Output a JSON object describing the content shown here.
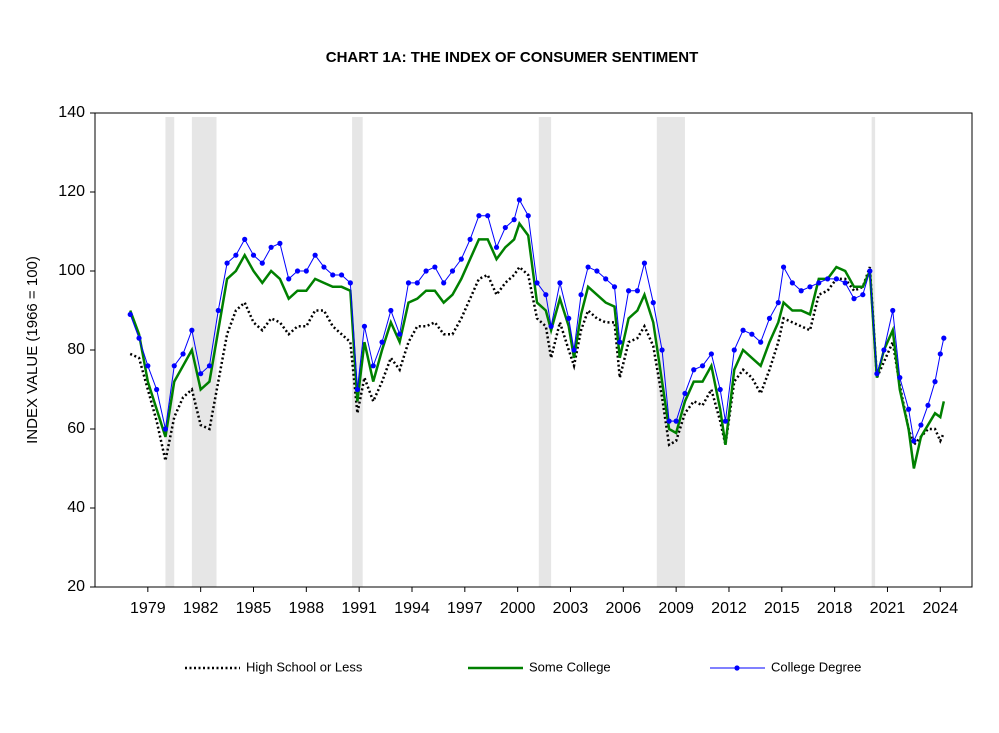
{
  "chart_data": {
    "type": "line",
    "title": "CHART 1A: THE INDEX OF CONSUMER SENTIMENT",
    "y_label": "INDEX VALUE (1966 = 100)",
    "xlim": [
      1976,
      2025.8
    ],
    "xticks": [
      1979,
      1982,
      1985,
      1988,
      1991,
      1994,
      1997,
      2000,
      2003,
      2006,
      2009,
      2012,
      2015,
      2018,
      2021,
      2024
    ],
    "ylim": [
      20,
      140
    ],
    "yticks": [
      20,
      40,
      60,
      80,
      100,
      120,
      140
    ],
    "grid": false,
    "legend": "bottom",
    "recessions": [
      [
        1980.0,
        1980.5
      ],
      [
        1981.5,
        1982.9
      ],
      [
        1990.6,
        1991.2
      ],
      [
        2001.2,
        2001.9
      ],
      [
        2007.9,
        2009.5
      ],
      [
        2020.1,
        2020.3
      ]
    ],
    "recession_color": "#e6e6e6",
    "x": [
      1978,
      1978.5,
      1979,
      1979.5,
      1980,
      1980.5,
      1981,
      1981.5,
      1982,
      1982.5,
      1983,
      1983.5,
      1984,
      1984.5,
      1985,
      1985.5,
      1986,
      1986.5,
      1987,
      1987.5,
      1988,
      1988.5,
      1989,
      1989.5,
      1990,
      1990.5,
      1990.9,
      1991.3,
      1991.8,
      1992.3,
      1992.8,
      1993.3,
      1993.8,
      1994.3,
      1994.8,
      1995.3,
      1995.8,
      1996.3,
      1996.8,
      1997.3,
      1997.8,
      1998.3,
      1998.8,
      1999.3,
      1999.8,
      2000.1,
      2000.6,
      2001.1,
      2001.6,
      2001.9,
      2002.4,
      2002.9,
      2003.2,
      2003.6,
      2004.0,
      2004.5,
      2005.0,
      2005.5,
      2005.8,
      2006.3,
      2006.8,
      2007.2,
      2007.7,
      2008.2,
      2008.6,
      2009.0,
      2009.5,
      2010.0,
      2010.5,
      2011.0,
      2011.5,
      2011.8,
      2012.3,
      2012.8,
      2013.3,
      2013.8,
      2014.3,
      2014.8,
      2015.1,
      2015.6,
      2016.1,
      2016.6,
      2017.1,
      2017.6,
      2018.1,
      2018.6,
      2019.1,
      2019.6,
      2020.0,
      2020.4,
      2020.8,
      2021.3,
      2021.7,
      2022.2,
      2022.5,
      2022.9,
      2023.3,
      2023.7,
      2024.0,
      2024.2
    ],
    "series": [
      {
        "name": "High School or Less",
        "color": "#000000",
        "style": "dotted",
        "values": [
          79,
          78,
          70,
          62,
          52,
          63,
          68,
          70,
          61,
          60,
          72,
          84,
          90,
          92,
          87,
          85,
          88,
          87,
          84,
          86,
          86,
          90,
          90,
          86,
          84,
          82,
          64,
          73,
          67,
          72,
          78,
          75,
          82,
          86,
          86,
          87,
          84,
          84,
          88,
          93,
          98,
          99,
          94,
          97,
          99,
          101,
          99,
          88,
          86,
          78,
          87,
          80,
          76,
          85,
          90,
          88,
          87,
          87,
          73,
          82,
          83,
          86,
          81,
          68,
          56,
          57,
          64,
          67,
          66,
          70,
          62,
          56,
          72,
          75,
          73,
          69,
          75,
          82,
          88,
          87,
          86,
          85,
          94,
          95,
          98,
          98,
          95,
          96,
          101,
          73,
          77,
          82,
          71,
          60,
          56,
          58,
          60,
          60,
          57,
          59
        ]
      },
      {
        "name": "Some College",
        "color": "#008000",
        "style": "solid",
        "values": [
          90,
          84,
          72,
          65,
          58,
          72,
          76,
          80,
          70,
          72,
          85,
          98,
          100,
          104,
          100,
          97,
          100,
          98,
          93,
          95,
          95,
          98,
          97,
          96,
          96,
          95,
          67,
          82,
          72,
          80,
          87,
          82,
          92,
          93,
          95,
          95,
          92,
          94,
          98,
          103,
          108,
          108,
          103,
          106,
          108,
          112,
          109,
          92,
          90,
          85,
          93,
          86,
          78,
          89,
          96,
          94,
          92,
          91,
          78,
          88,
          90,
          94,
          87,
          72,
          60,
          59,
          67,
          72,
          72,
          76,
          65,
          56,
          75,
          80,
          78,
          76,
          82,
          87,
          92,
          90,
          90,
          89,
          98,
          98,
          101,
          100,
          96,
          96,
          100,
          73,
          80,
          85,
          70,
          60,
          50,
          58,
          61,
          64,
          63,
          67
        ]
      },
      {
        "name": "College Degree",
        "color": "#0000ff",
        "style": "markers",
        "values": [
          89,
          83,
          76,
          70,
          60,
          76,
          79,
          85,
          74,
          76,
          90,
          102,
          104,
          108,
          104,
          102,
          106,
          107,
          98,
          100,
          100,
          104,
          101,
          99,
          99,
          97,
          70,
          86,
          76,
          82,
          90,
          84,
          97,
          97,
          100,
          101,
          97,
          100,
          103,
          108,
          114,
          114,
          106,
          111,
          113,
          118,
          114,
          97,
          94,
          86,
          97,
          88,
          80,
          94,
          101,
          100,
          98,
          96,
          82,
          95,
          95,
          102,
          92,
          80,
          62,
          62,
          69,
          75,
          76,
          79,
          70,
          62,
          80,
          85,
          84,
          82,
          88,
          92,
          101,
          97,
          95,
          96,
          97,
          98,
          98,
          97,
          93,
          94,
          100,
          74,
          80,
          90,
          73,
          65,
          57,
          61,
          66,
          72,
          79,
          83
        ]
      }
    ]
  }
}
